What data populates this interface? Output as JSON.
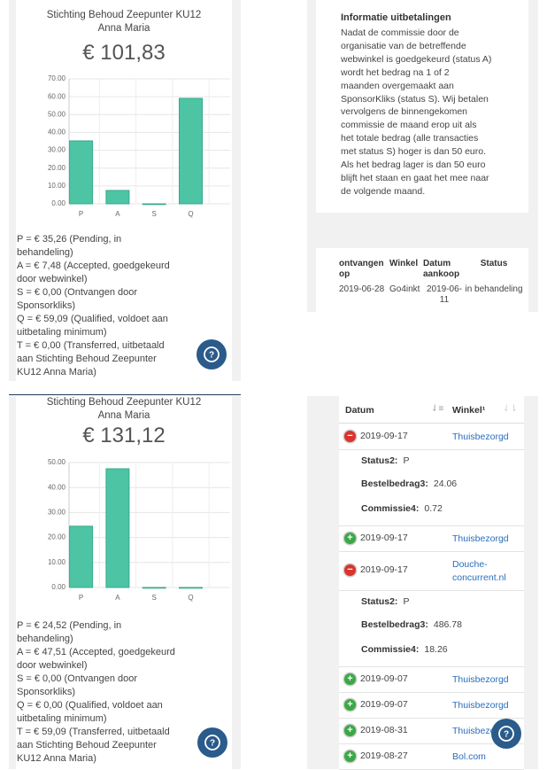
{
  "summaries": [
    {
      "title_lines": [
        "Stichting Behoud Zeepunter KU12",
        "Anna Maria"
      ],
      "amount": "€ 101,83",
      "legend_lines": [
        "P = € 35,26 (Pending, in",
        "behandeling)",
        "A = € 7,48 (Accepted, goedgekeurd",
        "door webwinkel)",
        "S = € 0,00 (Ontvangen door",
        "Sponsorkliks)",
        "Q = € 59,09 (Qualified, voldoet aan",
        "uitbetaling minimum)",
        "T = € 0,00 (Transferred, uitbetaald",
        "aan Stichting Behoud Zeepunter",
        "KU12 Anna Maria)"
      ]
    },
    {
      "title_lines": [
        "Stichting Behoud Zeepunter KU12",
        "Anna Maria"
      ],
      "amount": "€ 131,12",
      "legend_lines": [
        "P = € 24,52 (Pending, in",
        "behandeling)",
        "A = € 47,51 (Accepted, goedgekeurd",
        "door webwinkel)",
        "S = € 0,00 (Ontvangen door",
        "Sponsorkliks)",
        "Q = € 0,00 (Qualified, voldoet aan",
        "uitbetaling minimum)",
        "T = € 59,09 (Transferred, uitbetaald",
        "aan Stichting Behoud Zeepunter",
        "KU12 Anna Maria)"
      ]
    }
  ],
  "chart_data": [
    {
      "type": "bar",
      "categories": [
        "P",
        "A",
        "S",
        "Q"
      ],
      "values": [
        35.26,
        7.48,
        0,
        59.09
      ],
      "color": "#4dc5a5",
      "ylim": [
        0,
        70
      ],
      "yticks": [
        {
          "value": 0,
          "label": "0.00"
        },
        {
          "value": 10,
          "label": "10.00"
        },
        {
          "value": 20,
          "label": "20.00"
        },
        {
          "value": 30,
          "label": "30.00"
        },
        {
          "value": 40,
          "label": "40.00"
        },
        {
          "value": 50,
          "label": "50.00"
        },
        {
          "value": 60,
          "label": "60.00"
        },
        {
          "value": 70,
          "label": "70.00"
        }
      ],
      "grid": true
    },
    {
      "type": "bar",
      "categories": [
        "P",
        "A",
        "S",
        "Q"
      ],
      "values": [
        24.52,
        47.51,
        0,
        0
      ],
      "color": "#4dc5a5",
      "ylim": [
        0,
        50
      ],
      "yticks": [
        {
          "value": 0,
          "label": "0.00"
        },
        {
          "value": 10,
          "label": "10.00"
        },
        {
          "value": 20,
          "label": "20.00"
        },
        {
          "value": 30,
          "label": "30.00"
        },
        {
          "value": 40,
          "label": "40.00"
        },
        {
          "value": 50,
          "label": "50.00"
        }
      ],
      "grid": true
    }
  ],
  "info": {
    "title": "Informatie uitbetalingen",
    "lines": [
      "Nadat de commissie door de",
      "organisatie van de betreffende",
      "webwinkel is goedgekeurd (status A)",
      "wordt het bedrag na 1 of 2",
      "maanden overgemaakt aan",
      "SponsorKliks (status S). Wij betalen",
      "vervolgens de binnengekomen",
      "commissie de maand erop uit als",
      "het totale bedrag (alle transacties",
      "met status S) hoger is dan 50 euro.",
      "Als het bedrag lager is dan 50 euro",
      "blijft het staan en gaat het mee naar",
      "de volgende maand."
    ]
  },
  "payouts": {
    "headers": [
      "ontvangen op",
      "Winkel",
      "Datum aankoop",
      "Status"
    ],
    "rows": [
      [
        "2019-06-28",
        "Go4inkt",
        "2019-06-11",
        "in behandeling"
      ]
    ]
  },
  "transactions": {
    "headers": [
      "Datum",
      "Winkel¹"
    ],
    "rows": [
      {
        "date": "2019-09-17",
        "shop": "Thuisbezorgd",
        "expanded": true,
        "details": [
          {
            "label": "Status2:",
            "value": "P"
          },
          {
            "label": "Bestelbedrag3:",
            "value": "24.06"
          },
          {
            "label": "Commissie4:",
            "value": "0.72"
          }
        ]
      },
      {
        "date": "2019-09-17",
        "shop": "Thuisbezorgd",
        "expanded": false
      },
      {
        "date": "2019-09-17",
        "shop": "Douche-concurrent.nl",
        "expanded": true,
        "details": [
          {
            "label": "Status2:",
            "value": "P"
          },
          {
            "label": "Bestelbedrag3:",
            "value": "486.78"
          },
          {
            "label": "Commissie4:",
            "value": "18.26"
          }
        ]
      },
      {
        "date": "2019-09-07",
        "shop": "Thuisbezorgd",
        "expanded": false
      },
      {
        "date": "2019-09-07",
        "shop": "Thuisbezorgd",
        "expanded": false
      },
      {
        "date": "2019-08-31",
        "shop": "Thuisbezorgd",
        "expanded": false
      },
      {
        "date": "2019-08-27",
        "shop": "Bol.com",
        "expanded": false
      }
    ]
  }
}
